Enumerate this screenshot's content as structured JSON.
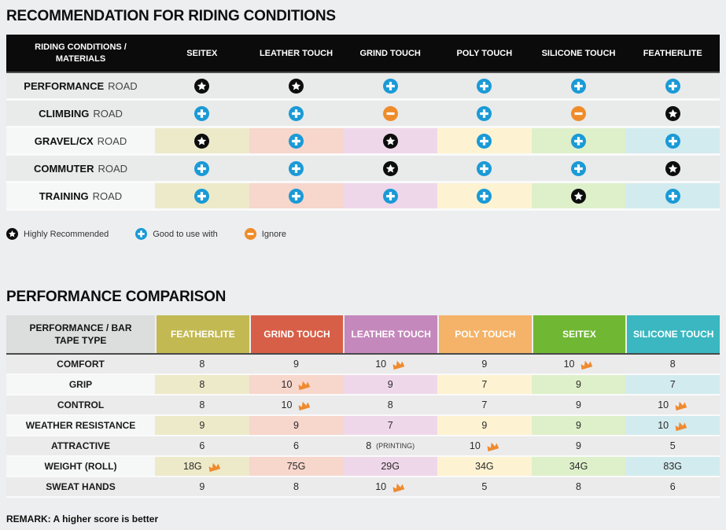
{
  "section1": {
    "title": "RECOMMENDATION FOR RIDING CONDITIONS",
    "table": {
      "header_label": "RIDING CONDITIONS / MATERIALS",
      "columns": [
        "SEITEX",
        "LEATHER TOUCH",
        "GRIND TOUCH",
        "POLY TOUCH",
        "SILICONE TOUCH",
        "FEATHERLITE"
      ],
      "rows": [
        {
          "label_bold": "PERFORMANCE",
          "label_rest": "ROAD",
          "tinted": false,
          "cells": [
            "star",
            "star",
            "plus",
            "plus",
            "plus",
            "plus"
          ]
        },
        {
          "label_bold": "CLIMBING",
          "label_rest": "ROAD",
          "tinted": false,
          "cells": [
            "plus",
            "plus",
            "minus",
            "plus",
            "minus",
            "star"
          ]
        },
        {
          "label_bold": "GRAVEL/CX",
          "label_rest": "ROAD",
          "tinted": true,
          "cells": [
            "star",
            "plus",
            "star",
            "plus",
            "plus",
            "plus"
          ]
        },
        {
          "label_bold": "COMMUTER",
          "label_rest": "ROAD",
          "tinted": false,
          "cells": [
            "plus",
            "plus",
            "star",
            "plus",
            "plus",
            "star"
          ]
        },
        {
          "label_bold": "TRAINING",
          "label_rest": "ROAD",
          "tinted": true,
          "cells": [
            "plus",
            "plus",
            "plus",
            "plus",
            "star",
            "plus"
          ]
        }
      ]
    },
    "legend": [
      {
        "icon": "star",
        "label": "Highly Recommended"
      },
      {
        "icon": "plus",
        "label": "Good to use with"
      },
      {
        "icon": "minus",
        "label": "Ignore"
      }
    ]
  },
  "section2": {
    "title": "PERFORMANCE COMPARISON",
    "table": {
      "header_label": "PERFORMANCE / BAR TAPE TYPE",
      "columns": [
        {
          "label": "FEATHERLITE",
          "color": "#c2b952"
        },
        {
          "label": "GRIND TOUCH",
          "color": "#d75f48"
        },
        {
          "label": "LEATHER TOUCH",
          "color": "#c488bc"
        },
        {
          "label": "POLY TOUCH",
          "color": "#f4b368"
        },
        {
          "label": "SEITEX",
          "color": "#70b733"
        },
        {
          "label": "SILICONE TOUCH",
          "color": "#3ab7c0"
        }
      ],
      "rows": [
        {
          "label": "COMFORT",
          "tinted": false,
          "cells": [
            {
              "value": "8"
            },
            {
              "value": "9"
            },
            {
              "value": "10",
              "crown": true
            },
            {
              "value": "9"
            },
            {
              "value": "10",
              "crown": true
            },
            {
              "value": "8"
            }
          ]
        },
        {
          "label": "GRIP",
          "tinted": true,
          "cells": [
            {
              "value": "8"
            },
            {
              "value": "10",
              "crown": true
            },
            {
              "value": "9"
            },
            {
              "value": "7"
            },
            {
              "value": "9"
            },
            {
              "value": "7"
            }
          ]
        },
        {
          "label": "CONTROL",
          "tinted": false,
          "cells": [
            {
              "value": "8"
            },
            {
              "value": "10",
              "crown": true
            },
            {
              "value": "8"
            },
            {
              "value": "7"
            },
            {
              "value": "9"
            },
            {
              "value": "10",
              "crown": true
            }
          ]
        },
        {
          "label": "WEATHER RESISTANCE",
          "tinted": true,
          "cells": [
            {
              "value": "9"
            },
            {
              "value": "9"
            },
            {
              "value": "7"
            },
            {
              "value": "9"
            },
            {
              "value": "9"
            },
            {
              "value": "10",
              "crown": true
            }
          ]
        },
        {
          "label": "ATTRACTIVE",
          "tinted": false,
          "cells": [
            {
              "value": "6"
            },
            {
              "value": "6"
            },
            {
              "value": "8",
              "suffix": "(PRINTING)"
            },
            {
              "value": "10",
              "crown": true
            },
            {
              "value": "9"
            },
            {
              "value": "5"
            }
          ]
        },
        {
          "label": "WEIGHT (ROLL)",
          "tinted": true,
          "cells": [
            {
              "value": "18G",
              "crown": true
            },
            {
              "value": "75G"
            },
            {
              "value": "29G"
            },
            {
              "value": "34G"
            },
            {
              "value": "34G"
            },
            {
              "value": "83G"
            }
          ]
        },
        {
          "label": "SWEAT HANDS",
          "tinted": false,
          "cells": [
            {
              "value": "9"
            },
            {
              "value": "8"
            },
            {
              "value": "10",
              "crown": true
            },
            {
              "value": "5"
            },
            {
              "value": "8"
            },
            {
              "value": "6"
            }
          ]
        }
      ]
    },
    "remark": "REMARK: A higher score is better"
  },
  "colors": {
    "page_background": "#edeeef",
    "table1_header_background": "#0b0b0b",
    "tints": [
      "#edeac9",
      "#f7d6cc",
      "#efd7ea",
      "#fdf3d2",
      "#def0ca",
      "#d2ebee"
    ],
    "icon_star": "#0d0d0d",
    "icon_plus": "#1a9ad6",
    "icon_minus": "#ee8c2a",
    "crown": "#ef8a2f"
  },
  "chart_data": [
    {
      "type": "table",
      "title": "RECOMMENDATION FOR RIDING CONDITIONS",
      "row_header": "RIDING CONDITIONS / MATERIALS",
      "columns": [
        "SEITEX",
        "LEATHER TOUCH",
        "GRIND TOUCH",
        "POLY TOUCH",
        "SILICONE TOUCH",
        "FEATHERLITE"
      ],
      "rows": [
        "PERFORMANCE ROAD",
        "CLIMBING ROAD",
        "GRAVEL/CX ROAD",
        "COMMUTER ROAD",
        "TRAINING ROAD"
      ],
      "values": [
        [
          "highly_recommended",
          "highly_recommended",
          "good_to_use_with",
          "good_to_use_with",
          "good_to_use_with",
          "good_to_use_with"
        ],
        [
          "good_to_use_with",
          "good_to_use_with",
          "ignore",
          "good_to_use_with",
          "ignore",
          "highly_recommended"
        ],
        [
          "highly_recommended",
          "good_to_use_with",
          "highly_recommended",
          "good_to_use_with",
          "good_to_use_with",
          "good_to_use_with"
        ],
        [
          "good_to_use_with",
          "good_to_use_with",
          "highly_recommended",
          "good_to_use_with",
          "good_to_use_with",
          "highly_recommended"
        ],
        [
          "good_to_use_with",
          "good_to_use_with",
          "good_to_use_with",
          "good_to_use_with",
          "highly_recommended",
          "good_to_use_with"
        ]
      ],
      "legend": {
        "highly_recommended": "Highly Recommended",
        "good_to_use_with": "Good to use with",
        "ignore": "Ignore"
      }
    },
    {
      "type": "table",
      "title": "PERFORMANCE COMPARISON",
      "row_header": "PERFORMANCE / BAR TAPE TYPE",
      "columns": [
        "FEATHERLITE",
        "GRIND TOUCH",
        "LEATHER TOUCH",
        "POLY TOUCH",
        "SEITEX",
        "SILICONE TOUCH"
      ],
      "rows": [
        "COMFORT",
        "GRIP",
        "CONTROL",
        "WEATHER RESISTANCE",
        "ATTRACTIVE",
        "WEIGHT (ROLL)",
        "SWEAT HANDS"
      ],
      "values": [
        [
          "8",
          "9",
          "10",
          "9",
          "10",
          "8"
        ],
        [
          "8",
          "10",
          "9",
          "7",
          "9",
          "7"
        ],
        [
          "8",
          "10",
          "8",
          "7",
          "9",
          "10"
        ],
        [
          "9",
          "9",
          "7",
          "9",
          "9",
          "10"
        ],
        [
          "6",
          "6",
          "8 (PRINTING)",
          "10",
          "9",
          "5"
        ],
        [
          "18G",
          "75G",
          "29G",
          "34G",
          "34G",
          "83G"
        ],
        [
          "9",
          "8",
          "10",
          "5",
          "8",
          "6"
        ]
      ],
      "crowns": [
        [
          false,
          false,
          true,
          false,
          true,
          false
        ],
        [
          false,
          true,
          false,
          false,
          false,
          false
        ],
        [
          false,
          true,
          false,
          false,
          false,
          true
        ],
        [
          false,
          false,
          false,
          false,
          false,
          true
        ],
        [
          false,
          false,
          false,
          true,
          false,
          false
        ],
        [
          true,
          false,
          false,
          false,
          false,
          false
        ],
        [
          false,
          false,
          true,
          false,
          false,
          false
        ]
      ],
      "remark": "REMARK: A higher score is better"
    }
  ]
}
